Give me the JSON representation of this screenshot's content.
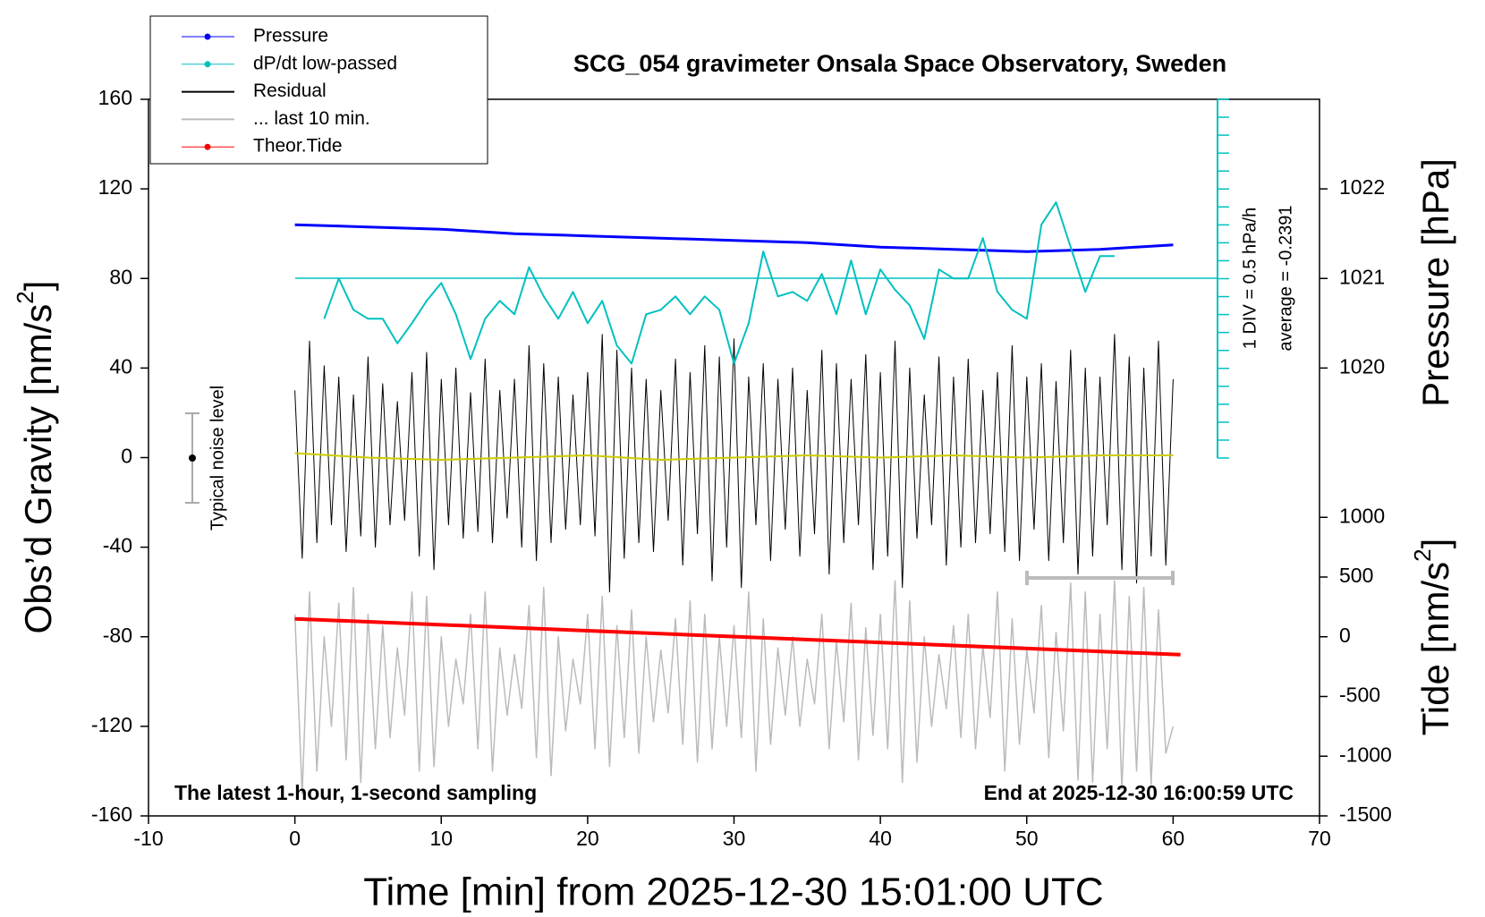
{
  "chart_data": {
    "type": "line",
    "title": "SCG_054 gravimeter Onsala Space Observatory, Sweden",
    "x_label": "Time [min] from 2025-12-30 15:01:00 UTC",
    "y_label": {
      "text": "Obs’d Gravity [nm/s",
      "sup": "2",
      "end": "]"
    },
    "y2_label": "Pressure [hPa]",
    "y3_label": {
      "text": "Tide [nm/s",
      "sup": "2",
      "end": "]"
    },
    "annotations": {
      "noise": "Typical noise level",
      "div": "1 DIV = 0.5 hPa/h",
      "average": "average = -0.2391",
      "left_note": "The latest 1-hour, 1-second sampling",
      "right_note": "End at 2025-12-30 16:00:59 UTC"
    },
    "xlim": [
      -10,
      70
    ],
    "xticks": [
      -10,
      0,
      10,
      20,
      30,
      40,
      50,
      60,
      70
    ],
    "ylim": [
      -160,
      160
    ],
    "yticks": [
      -160,
      -120,
      -80,
      -40,
      0,
      40,
      80,
      120,
      160
    ],
    "y2lim": [
      1015,
      1023
    ],
    "y2ticks": [
      1020,
      1021,
      1022
    ],
    "y3lim": [
      -1500,
      4500
    ],
    "y3ticks": [
      -1500,
      -1000,
      -500,
      0,
      500,
      1000
    ],
    "x": [
      0,
      0.5,
      1,
      1.5,
      2,
      2.5,
      3,
      3.5,
      4,
      4.5,
      5,
      5.5,
      6,
      6.5,
      7,
      7.5,
      8,
      8.5,
      9,
      9.5,
      10,
      10.5,
      11,
      11.5,
      12,
      12.5,
      13,
      13.5,
      14,
      14.5,
      15,
      15.5,
      16,
      16.5,
      17,
      17.5,
      18,
      18.5,
      19,
      19.5,
      20,
      20.5,
      21,
      21.5,
      22,
      22.5,
      23,
      23.5,
      24,
      24.5,
      25,
      25.5,
      26,
      26.5,
      27,
      27.5,
      28,
      28.5,
      29,
      29.5,
      30,
      30.5,
      31,
      31.5,
      32,
      32.5,
      33,
      33.5,
      34,
      34.5,
      35,
      35.5,
      36,
      36.5,
      37,
      37.5,
      38,
      38.5,
      39,
      39.5,
      40,
      40.5,
      41,
      41.5,
      42,
      42.5,
      43,
      43.5,
      44,
      44.5,
      45,
      45.5,
      46,
      46.5,
      47,
      47.5,
      48,
      48.5,
      49,
      49.5,
      50,
      50.5,
      51,
      51.5,
      52,
      52.5,
      53,
      53.5,
      54,
      54.5,
      55,
      55.5,
      56,
      56.5,
      57,
      57.5,
      58,
      58.5,
      59,
      59.5,
      60
    ],
    "series": [
      {
        "name": "Pressure",
        "color": "#0000ff",
        "marker": true,
        "axis": "y2",
        "x": [
          0,
          5,
          10,
          15,
          20,
          25,
          30,
          35,
          40,
          45,
          50,
          55,
          60
        ],
        "values": [
          1021.6,
          1021.575,
          1021.55,
          1021.5,
          1021.475,
          1021.45,
          1021.425,
          1021.4,
          1021.35,
          1021.325,
          1021.3,
          1021.325,
          1021.375
        ]
      },
      {
        "name": "dP/dt low-passed",
        "color": "#00c0c0",
        "marker": true,
        "axis": "y",
        "x": [
          2,
          3,
          4,
          5,
          6,
          7,
          8,
          9,
          10,
          11,
          12,
          13,
          14,
          15,
          16,
          17,
          18,
          19,
          20,
          21,
          22,
          23,
          24,
          25,
          26,
          27,
          28,
          29,
          30,
          31,
          32,
          33,
          34,
          35,
          36,
          37,
          38,
          39,
          40,
          41,
          42,
          43,
          44,
          45,
          46,
          47,
          48,
          49,
          50,
          51,
          52,
          53,
          54,
          55,
          56
        ],
        "values": [
          62,
          80,
          66,
          62,
          62,
          51,
          60,
          70,
          78,
          64,
          44,
          62,
          70,
          64,
          85,
          72,
          62,
          74,
          60,
          70,
          50,
          42,
          64,
          66,
          72,
          64,
          72,
          66,
          42,
          60,
          92,
          72,
          74,
          70,
          82,
          64,
          88,
          64,
          84,
          75,
          68,
          53,
          84,
          80,
          80,
          98,
          74,
          66,
          62,
          104,
          114,
          94,
          74,
          90,
          90
        ]
      },
      {
        "name": "Residual",
        "color": "#000000",
        "marker": false,
        "axis": "y",
        "values": [
          30,
          -45,
          52,
          -38,
          41,
          -30,
          36,
          -42,
          28,
          -35,
          45,
          -40,
          33,
          -30,
          25,
          -28,
          38,
          -44,
          47,
          -50,
          35,
          -30,
          40,
          -36,
          29,
          -33,
          44,
          -38,
          30,
          -27,
          35,
          -40,
          50,
          -46,
          42,
          -38,
          36,
          -32,
          28,
          -30,
          38,
          -35,
          55,
          -60,
          48,
          -45,
          40,
          -38,
          35,
          -42,
          30,
          -28,
          44,
          -48,
          38,
          -34,
          50,
          -55,
          45,
          -40,
          53,
          -58,
          36,
          -30,
          42,
          -46,
          35,
          -32,
          40,
          -44,
          30,
          -34,
          48,
          -52,
          42,
          -38,
          35,
          -30,
          46,
          -50,
          38,
          -44,
          52,
          -58,
          40,
          -36,
          28,
          -30,
          45,
          -48,
          36,
          -40,
          44,
          -38,
          30,
          -34,
          38,
          -42,
          50,
          -46,
          36,
          -32,
          42,
          -46,
          34,
          -38,
          48,
          -52,
          40,
          -44,
          36,
          -30,
          55,
          -50,
          45,
          -56,
          40,
          -44,
          52,
          -48,
          35
        ]
      },
      {
        "name": "... last 10 min.",
        "color": "#bbbbbb",
        "marker": false,
        "axis": "y",
        "values": [
          -70,
          -150,
          -60,
          -140,
          -80,
          -120,
          -65,
          -135,
          -58,
          -145,
          -70,
          -130,
          -75,
          -125,
          -85,
          -115,
          -60,
          -140,
          -62,
          -138,
          -80,
          -120,
          -90,
          -110,
          -70,
          -130,
          -60,
          -140,
          -85,
          -115,
          -88,
          -112,
          -66,
          -134,
          -58,
          -142,
          -80,
          -122,
          -90,
          -110,
          -70,
          -130,
          -62,
          -138,
          -75,
          -125,
          -68,
          -132,
          -80,
          -118,
          -86,
          -114,
          -72,
          -128,
          -64,
          -136,
          -70,
          -130,
          -80,
          -120,
          -75,
          -125,
          -60,
          -140,
          -72,
          -128,
          -85,
          -115,
          -80,
          -120,
          -90,
          -110,
          -70,
          -130,
          -82,
          -118,
          -65,
          -135,
          -76,
          -124,
          -70,
          -130,
          -55,
          -145,
          -64,
          -136,
          -80,
          -120,
          -88,
          -112,
          -75,
          -125,
          -70,
          -130,
          -84,
          -116,
          -60,
          -140,
          -72,
          -128,
          -86,
          -114,
          -66,
          -134,
          -78,
          -122,
          -56,
          -144,
          -60,
          -145,
          -70,
          -130,
          -55,
          -148,
          -62,
          -140,
          -58,
          -146,
          -68,
          -132,
          -120
        ]
      },
      {
        "name": "Theor.Tide",
        "color": "#ff0000",
        "marker": true,
        "axis": "y3",
        "x": [
          0,
          60.5
        ],
        "values": [
          150,
          -150
        ]
      },
      {
        "color": "#cccc00",
        "marker": false,
        "axis": "y",
        "x": [
          0,
          5,
          10,
          15,
          20,
          25,
          30,
          35,
          40,
          45,
          50,
          55,
          60
        ],
        "values": [
          2,
          0,
          -1,
          0,
          1,
          -1,
          0,
          1,
          0,
          1,
          0,
          1,
          1
        ]
      }
    ]
  }
}
